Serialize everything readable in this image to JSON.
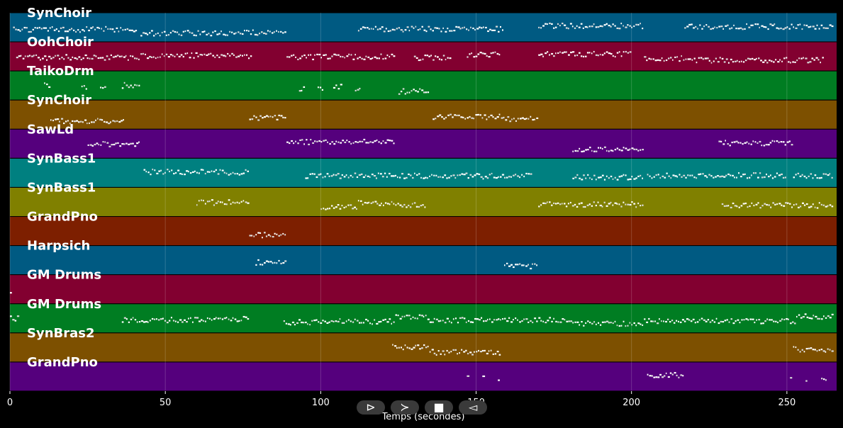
{
  "chart_data": {
    "type": "pianoroll",
    "xlabel": "Temps (secondes)",
    "xlim": [
      0,
      266
    ],
    "x_ticks": [
      0,
      50,
      100,
      150,
      200,
      250
    ],
    "grid": true,
    "tracks": [
      {
        "name": "SynChoir",
        "color": "#005a82",
        "regions": [
          [
            1,
            41
          ],
          [
            42,
            78
          ],
          [
            78,
            89
          ],
          [
            112,
            159
          ],
          [
            170,
            204
          ],
          [
            217,
            265
          ]
        ]
      },
      {
        "name": "OohChoir",
        "color": "#820030",
        "regions": [
          [
            2,
            42
          ],
          [
            42,
            78
          ],
          [
            89,
            124
          ],
          [
            130,
            142
          ],
          [
            147,
            158
          ],
          [
            170,
            200
          ],
          [
            204,
            218
          ],
          [
            218,
            262
          ]
        ]
      },
      {
        "name": "TaikoDrm",
        "color": "#007d22",
        "regions": [
          [
            11,
            13
          ],
          [
            23,
            25
          ],
          [
            29,
            31
          ],
          [
            36,
            42
          ],
          [
            93,
            95
          ],
          [
            99,
            101
          ],
          [
            104,
            107
          ],
          [
            111,
            113
          ],
          [
            125,
            135
          ]
        ]
      },
      {
        "name": "SynChoir",
        "color": "#7d5000",
        "regions": [
          [
            13,
            37
          ],
          [
            77,
            89
          ],
          [
            136,
            158
          ],
          [
            158,
            170
          ]
        ]
      },
      {
        "name": "SawLd",
        "color": "#55007d",
        "regions": [
          [
            25,
            42
          ],
          [
            89,
            124
          ],
          [
            181,
            204
          ],
          [
            228,
            252
          ]
        ]
      },
      {
        "name": "SynBass1",
        "color": "#008080",
        "regions": [
          [
            43,
            62
          ],
          [
            62,
            77
          ],
          [
            95,
            150
          ],
          [
            150,
            168
          ],
          [
            181,
            204
          ],
          [
            205,
            250
          ],
          [
            252,
            265
          ]
        ]
      },
      {
        "name": "SynBass1",
        "color": "#808000",
        "regions": [
          [
            60,
            77
          ],
          [
            100,
            112
          ],
          [
            112,
            124
          ],
          [
            124,
            134
          ],
          [
            170,
            204
          ],
          [
            229,
            265
          ]
        ]
      },
      {
        "name": "GrandPno",
        "color": "#7d1f00",
        "regions": [
          [
            77,
            89
          ]
        ]
      },
      {
        "name": "Harpsich",
        "color": "#005a82",
        "regions": [
          [
            79,
            89
          ],
          [
            159,
            170
          ]
        ]
      },
      {
        "name": "GM Drums",
        "color": "#820030",
        "regions": [
          [
            0,
            1
          ]
        ]
      },
      {
        "name": "GM Drums",
        "color": "#007d22",
        "regions": [
          [
            0,
            3
          ],
          [
            36,
            60
          ],
          [
            60,
            77
          ],
          [
            88,
            106
          ],
          [
            106,
            124
          ],
          [
            124,
            135
          ],
          [
            135,
            181
          ],
          [
            181,
            204
          ],
          [
            204,
            253
          ],
          [
            253,
            265
          ]
        ]
      },
      {
        "name": "SynBras2",
        "color": "#7d5000",
        "regions": [
          [
            123,
            135
          ],
          [
            135,
            158
          ],
          [
            252,
            265
          ]
        ]
      },
      {
        "name": "GrandPno",
        "color": "#55007d",
        "regions": [
          [
            147,
            148
          ],
          [
            152,
            153
          ],
          [
            157,
            158
          ],
          [
            205,
            215
          ],
          [
            215,
            217
          ],
          [
            251,
            252
          ],
          [
            256,
            257
          ],
          [
            261,
            263
          ]
        ]
      }
    ]
  },
  "playback": {
    "play_label": "⊳",
    "forward_label": "≻",
    "stop_label": "■",
    "rewind_label": "◅"
  }
}
